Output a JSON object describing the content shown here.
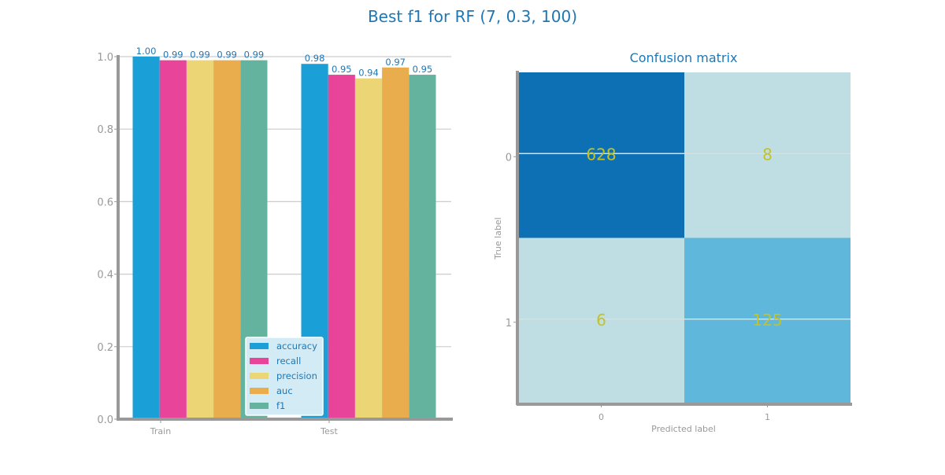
{
  "figure": {
    "title": "Best f1 for RF (7, 0.3, 100)",
    "title_color": "#1f77b4"
  },
  "chart_data": [
    {
      "type": "bar",
      "title": "",
      "xlabel": "",
      "ylabel": "",
      "categories": [
        "Train",
        "Test"
      ],
      "ylim": [
        0,
        1.0
      ],
      "yticks": [
        "0.0",
        "0.2",
        "0.4",
        "0.6",
        "0.8",
        "1.0"
      ],
      "grid": true,
      "legend": "lower-right",
      "series": [
        {
          "name": "accuracy",
          "color": "#1a9fd7",
          "values": [
            1.0,
            0.98
          ],
          "labels": [
            "1.00",
            "0.98"
          ]
        },
        {
          "name": "recall",
          "color": "#e8459a",
          "values": [
            0.99,
            0.95
          ],
          "labels": [
            "0.99",
            "0.95"
          ]
        },
        {
          "name": "precision",
          "color": "#ecd574",
          "values": [
            0.99,
            0.94
          ],
          "labels": [
            "0.99",
            "0.94"
          ]
        },
        {
          "name": "auc",
          "color": "#e9ad4e",
          "values": [
            0.99,
            0.97
          ],
          "labels": [
            "0.99",
            "0.97"
          ]
        },
        {
          "name": "f1",
          "color": "#63b39f",
          "values": [
            0.99,
            0.95
          ],
          "labels": [
            "0.99",
            "0.95"
          ]
        }
      ]
    },
    {
      "type": "heatmap",
      "title": "Confusion matrix",
      "xlabel": "Predicted label",
      "ylabel": "True label",
      "x_categories": [
        "0",
        "1"
      ],
      "y_categories": [
        "0",
        "1"
      ],
      "values": [
        [
          628,
          8
        ],
        [
          6,
          125
        ]
      ],
      "cell_colors": [
        [
          "#0d70b4",
          "#bfdee3"
        ],
        [
          "#bfdee3",
          "#5fb8dc"
        ]
      ],
      "annotation_color": "#c2c22a"
    }
  ]
}
